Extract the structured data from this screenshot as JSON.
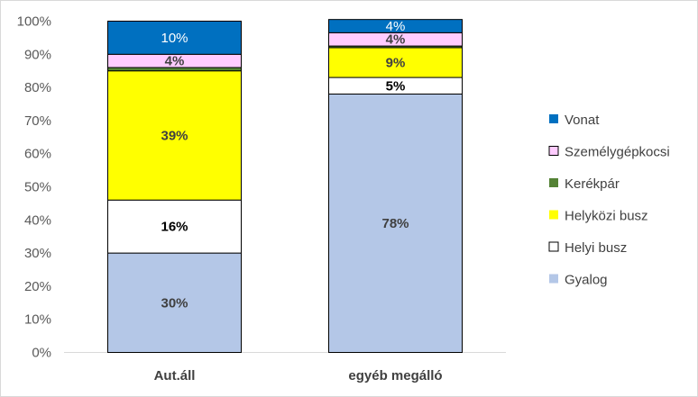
{
  "chart_data": {
    "type": "bar",
    "stacked": true,
    "percent_axis": true,
    "categories": [
      "Aut.áll",
      "egyéb megálló"
    ],
    "ylim": [
      0,
      100
    ],
    "yticks": [
      0,
      10,
      20,
      30,
      40,
      50,
      60,
      70,
      80,
      90,
      100
    ],
    "ytick_labels": [
      "0%",
      "10%",
      "20%",
      "30%",
      "40%",
      "50%",
      "60%",
      "70%",
      "80%",
      "90%",
      "100%"
    ],
    "grid": false,
    "legend_position": "right",
    "series": [
      {
        "name": "Gyalog",
        "color": "#b4c7e7",
        "values": [
          30,
          78
        ],
        "labels": [
          "30%",
          "78%"
        ],
        "label_color": "#404040",
        "label_bold": true
      },
      {
        "name": "Helyi busz",
        "color": "#ffffff",
        "values": [
          16,
          5
        ],
        "labels": [
          "16%",
          "5%"
        ],
        "label_color": "#000000",
        "label_bold": true
      },
      {
        "name": "Helyközi busz",
        "color": "#ffff00",
        "values": [
          39,
          9
        ],
        "labels": [
          "39%",
          "9%"
        ],
        "label_color": "#404040",
        "label_bold": true
      },
      {
        "name": "Kerékpár",
        "color": "#548235",
        "values": [
          1,
          0.5
        ],
        "labels": [
          "",
          ""
        ],
        "label_color": "#404040",
        "label_bold": false
      },
      {
        "name": "Személygépkocsi",
        "color": "#ffccff",
        "values": [
          4,
          4
        ],
        "labels": [
          "4%",
          "4%"
        ],
        "label_color": "#404040",
        "label_bold": true
      },
      {
        "name": "Vonat",
        "color": "#0070c0",
        "values": [
          10,
          4
        ],
        "labels": [
          "10%",
          "4%"
        ],
        "label_color": "#ffffff",
        "label_bold": false
      }
    ]
  }
}
